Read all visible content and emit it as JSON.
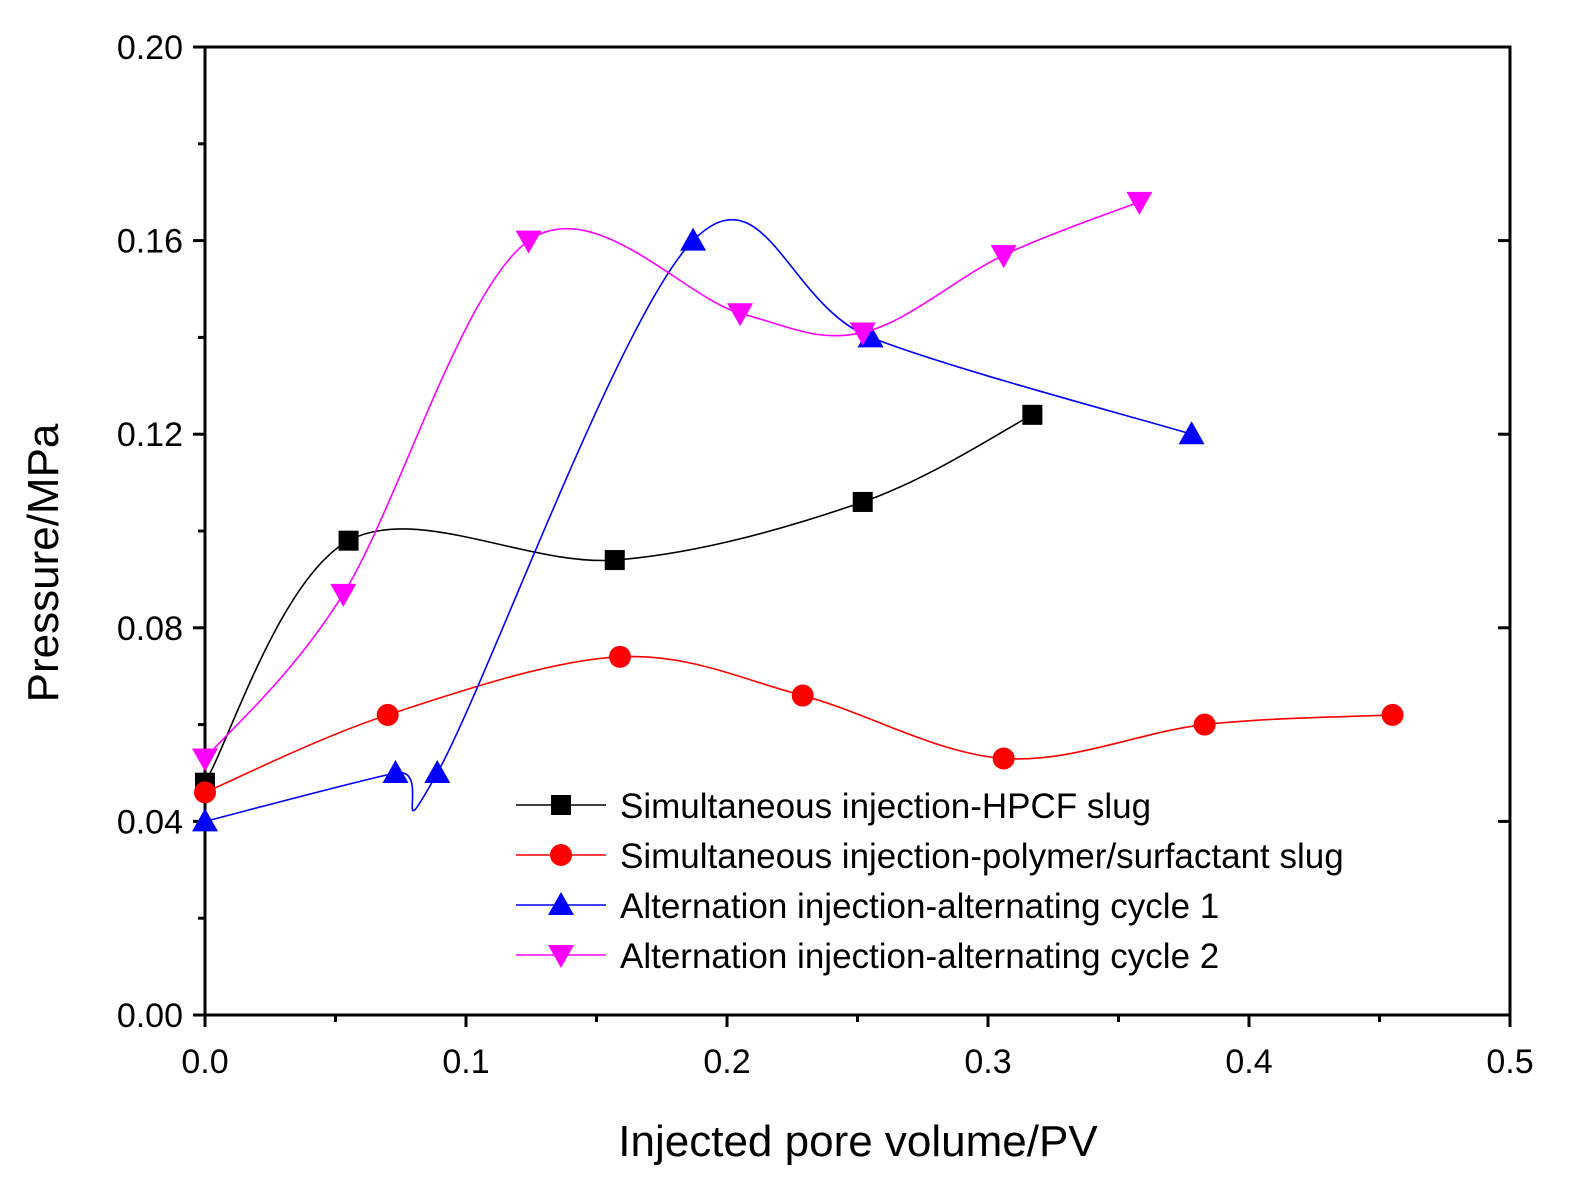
{
  "chart_data": {
    "type": "line",
    "xlabel": "Injected pore volume/PV",
    "ylabel": "Pressure/MPa",
    "xlim": [
      0.0,
      0.5
    ],
    "ylim": [
      0.0,
      0.2
    ],
    "xticks": [
      0.0,
      0.1,
      0.2,
      0.3,
      0.4,
      0.5
    ],
    "xtick_labels": [
      "0.0",
      "0.1",
      "0.2",
      "0.3",
      "0.4",
      "0.5"
    ],
    "yticks": [
      0.0,
      0.04,
      0.08,
      0.12,
      0.16,
      0.2
    ],
    "ytick_labels": [
      "0.00",
      "0.04",
      "0.08",
      "0.12",
      "0.16",
      "0.20"
    ],
    "legend_position": "bottom-right",
    "grid": false,
    "series": [
      {
        "name": "Simultaneous injection-HPCF slug",
        "color": "#000000",
        "marker": "square",
        "x": [
          0.0,
          0.055,
          0.157,
          0.252,
          0.317
        ],
        "y": [
          0.048,
          0.098,
          0.094,
          0.106,
          0.124
        ]
      },
      {
        "name": "Simultaneous injection-polymer/surfactant slug",
        "color": "#ff0000",
        "marker": "circle",
        "x": [
          0.0,
          0.07,
          0.159,
          0.229,
          0.306,
          0.383,
          0.455
        ],
        "y": [
          0.046,
          0.062,
          0.074,
          0.066,
          0.053,
          0.06,
          0.062
        ]
      },
      {
        "name": "Alternation injection-alternating cycle 1",
        "color": "#0000ff",
        "marker": "triangle-up",
        "x": [
          0.0,
          0.073,
          0.089,
          0.187,
          0.255,
          0.378
        ],
        "y": [
          0.04,
          0.05,
          0.05,
          0.16,
          0.14,
          0.12
        ]
      },
      {
        "name": "Alternation injection-alternating cycle 2",
        "color": "#ff00ff",
        "marker": "triangle-down",
        "x": [
          0.0,
          0.053,
          0.124,
          0.205,
          0.252,
          0.306,
          0.358
        ],
        "y": [
          0.053,
          0.087,
          0.16,
          0.145,
          0.141,
          0.157,
          0.168
        ]
      }
    ]
  }
}
